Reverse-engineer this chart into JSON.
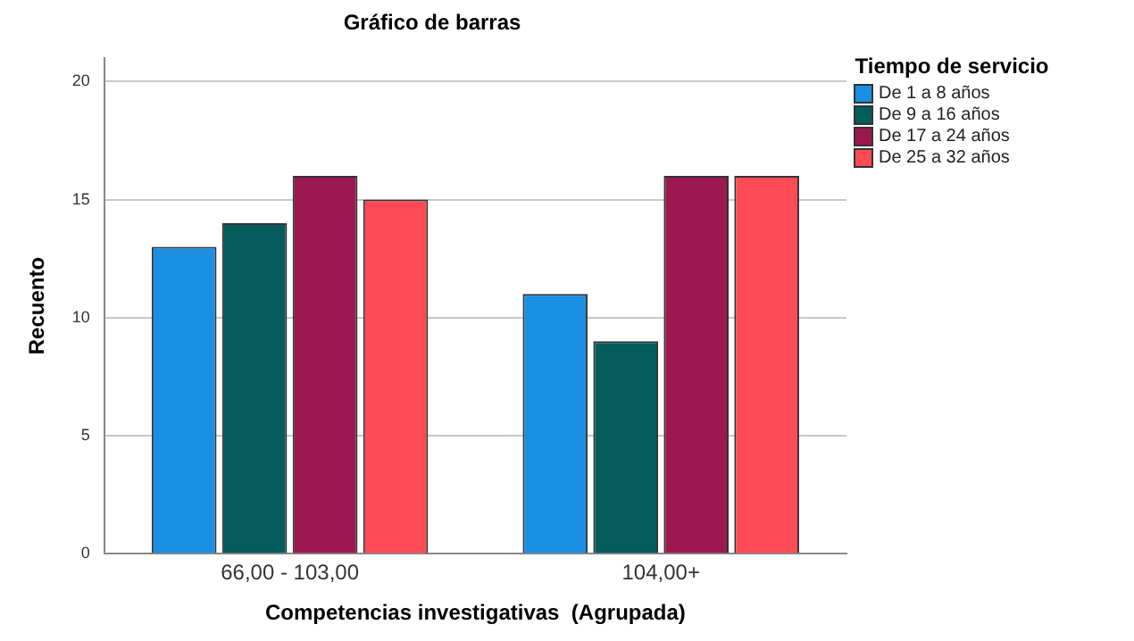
{
  "chart_data": {
    "type": "bar",
    "title": "Gráfico de barras",
    "xlabel": "Competencias investigativas  (Agrupada)",
    "ylabel": "Recuento",
    "legend_title": "Tiempo de servicio",
    "categories": [
      "66,00 - 103,00",
      "104,00+"
    ],
    "series": [
      {
        "name": "De 1 a 8 años",
        "color": "#1a8fe3",
        "values": [
          13,
          11
        ]
      },
      {
        "name": "De 9 a 16 años",
        "color": "#045c5c",
        "values": [
          14,
          9
        ]
      },
      {
        "name": "De 17 a 24 años",
        "color": "#9c1850",
        "values": [
          16,
          16
        ]
      },
      {
        "name": "De 25 a 32 años",
        "color": "#fd4a54",
        "values": [
          15,
          16
        ]
      }
    ],
    "ylim": [
      0,
      21
    ],
    "yticks": [
      0,
      5,
      10,
      15,
      20
    ],
    "grid": "y",
    "legend": "top right"
  }
}
